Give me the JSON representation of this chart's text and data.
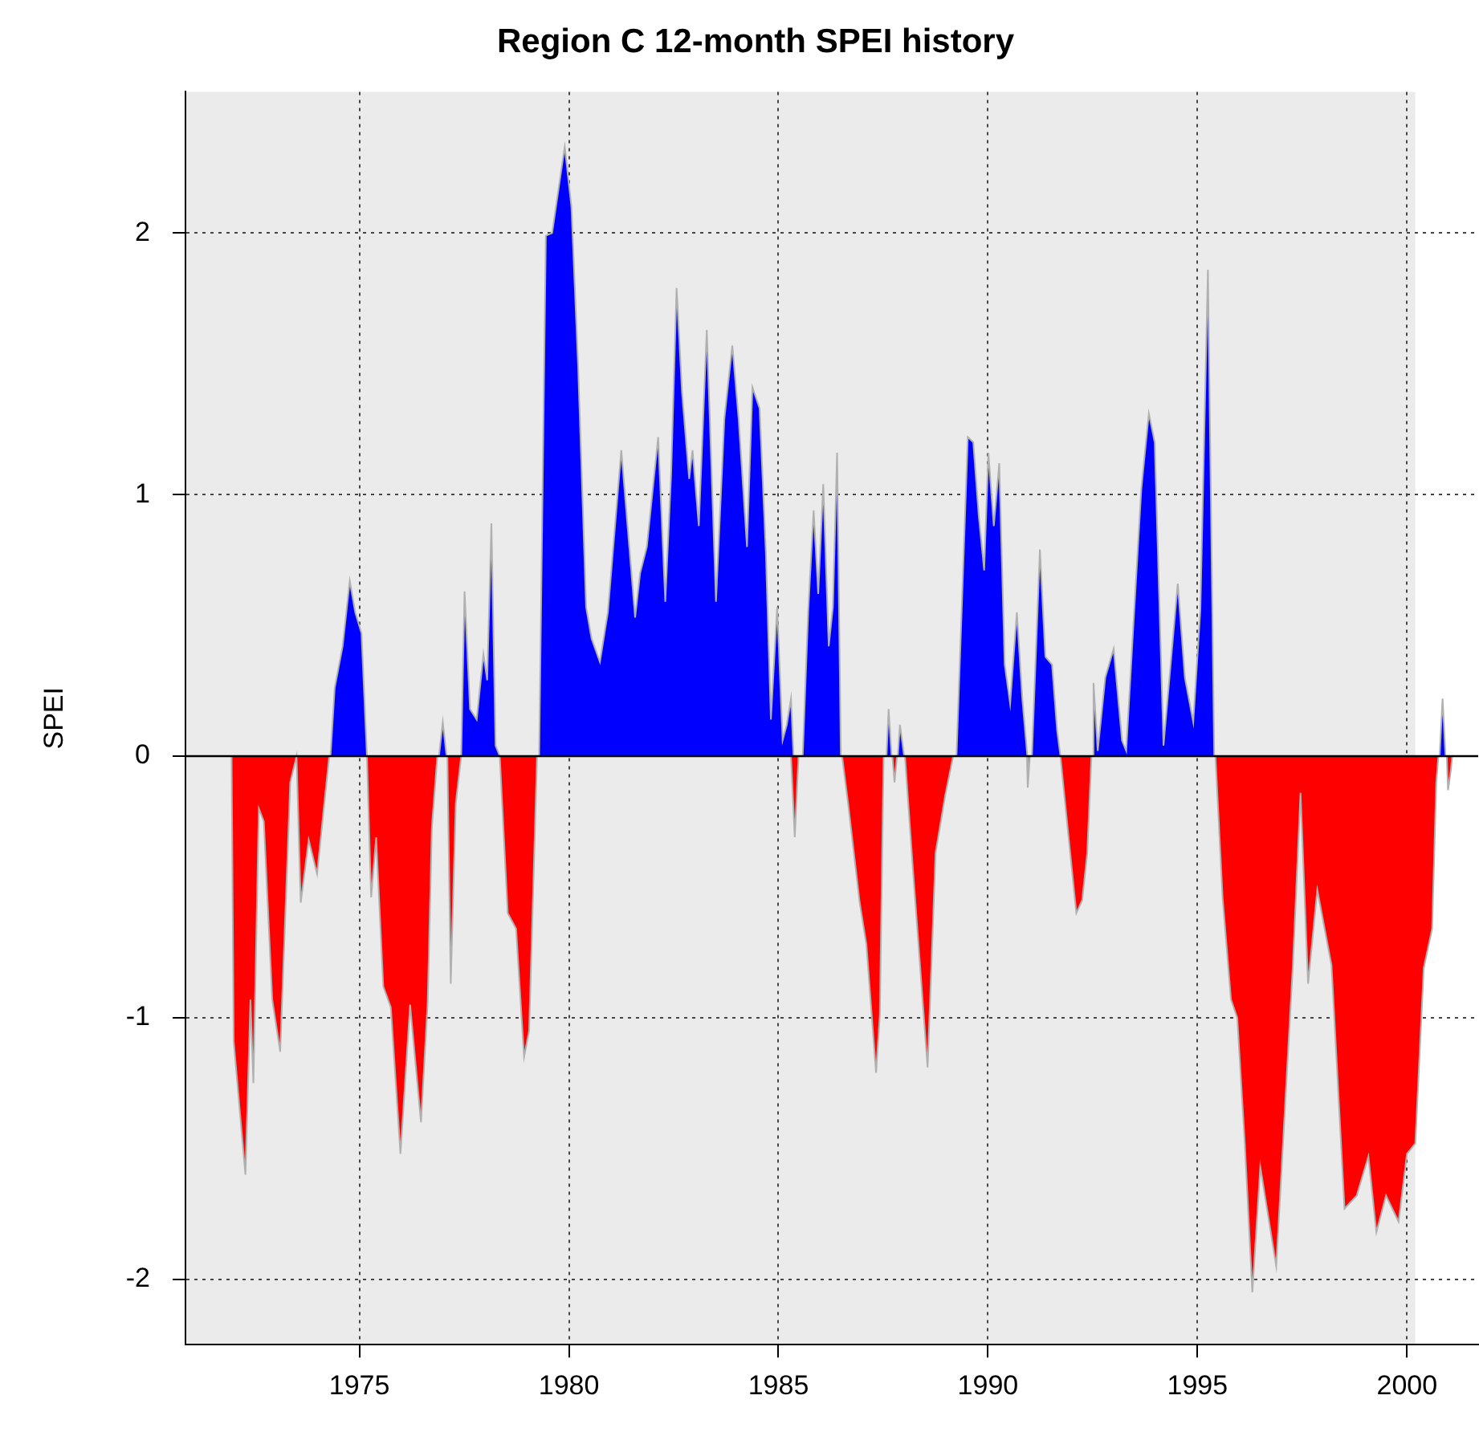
{
  "chart_data": {
    "type": "area",
    "title": "Region C 12-month SPEI history",
    "ylabel": "SPEI",
    "xlim": [
      1970.85,
      2001.7
    ],
    "xticks": [
      1975,
      1980,
      1985,
      1990,
      1995,
      2000
    ],
    "ylim": [
      -2.25,
      2.54
    ],
    "yticks": [
      -2,
      -1,
      0,
      1,
      2
    ],
    "grid": true,
    "ref_lines": [
      {
        "axis": "y",
        "value": 0,
        "color": "#000000",
        "line_style": "solid"
      }
    ],
    "bands": [
      {
        "axis": "x",
        "from": 1970.85,
        "to": 2000.2,
        "color": "#ebebeb"
      }
    ],
    "series": [
      {
        "color": "#0000ff",
        "x": [
          1974.31,
          1974.41,
          1974.6,
          1974.77,
          1974.9,
          1975.05,
          1975.18,
          1976.9,
          1976.99,
          1977.08,
          1977.43,
          1977.51,
          1977.64,
          1977.8,
          1977.96,
          1978.05,
          1978.15,
          1978.25,
          1978.35,
          1979.29,
          1979.45,
          1979.6,
          1979.9,
          1980.06,
          1980.22,
          1980.41,
          1980.54,
          1980.74,
          1980.93,
          1981.25,
          1981.58,
          1981.7,
          1981.86,
          1982.13,
          1982.3,
          1982.44,
          1982.57,
          1982.7,
          1982.87,
          1982.95,
          1983.1,
          1983.29,
          1983.51,
          1983.71,
          1983.9,
          1984.05,
          1984.25,
          1984.38,
          1984.55,
          1984.7,
          1984.82,
          1984.97,
          1985.1,
          1985.2,
          1985.3,
          1985.36,
          1985.58,
          1985.71,
          1985.84,
          1985.95,
          1986.07,
          1986.2,
          1986.3,
          1986.4,
          1986.49,
          1987.58,
          1987.63,
          1987.7,
          1987.85,
          1987.9,
          1988.0,
          1989.25,
          1989.52,
          1989.65,
          1989.78,
          1989.91,
          1990.01,
          1990.14,
          1990.27,
          1990.4,
          1990.53,
          1990.69,
          1990.82,
          1990.94,
          1991.05,
          1991.24,
          1991.37,
          1991.53,
          1991.65,
          1991.73,
          1992.49,
          1992.52,
          1992.62,
          1992.8,
          1993.0,
          1993.2,
          1993.3,
          1993.46,
          1993.66,
          1993.84,
          1993.98,
          1994.19,
          1994.53,
          1994.7,
          1994.9,
          1995.07,
          1995.25,
          1995.4,
          2000.78,
          2000.85,
          2000.92
        ],
        "values": [
          0,
          0.26,
          0.42,
          0.67,
          0.55,
          0.47,
          0,
          0,
          0.13,
          0,
          0,
          0.63,
          0.18,
          0.14,
          0.39,
          0.29,
          0.89,
          0.04,
          0,
          0,
          1.99,
          2.0,
          2.33,
          2.1,
          1.49,
          0.57,
          0.45,
          0.36,
          0.55,
          1.17,
          0.53,
          0.7,
          0.8,
          1.22,
          0.59,
          1.08,
          1.79,
          1.39,
          1.06,
          1.17,
          0.88,
          1.63,
          0.59,
          1.29,
          1.57,
          1.29,
          0.8,
          1.41,
          1.33,
          0.78,
          0.14,
          0.57,
          0.06,
          0.12,
          0.22,
          0,
          0,
          0.55,
          0.94,
          0.62,
          1.04,
          0.42,
          0.57,
          1.16,
          0,
          0,
          0.18,
          0,
          0,
          0.12,
          0,
          0,
          1.22,
          1.2,
          0.92,
          0.71,
          1.16,
          0.88,
          1.12,
          0.35,
          0.2,
          0.55,
          0.22,
          0,
          0,
          0.79,
          0.38,
          0.35,
          0.1,
          0,
          0,
          0.28,
          0.02,
          0.3,
          0.41,
          0.06,
          0.02,
          0.47,
          1.02,
          1.31,
          1.2,
          0.04,
          0.66,
          0.3,
          0.13,
          0.56,
          1.86,
          0,
          0,
          0.22,
          0
        ]
      },
      {
        "color": "#ff0000",
        "x": [
          1971.95,
          1972.0,
          1972.28,
          1972.4,
          1972.47,
          1972.6,
          1972.72,
          1972.92,
          1973.11,
          1973.35,
          1973.5,
          1973.6,
          1973.79,
          1973.99,
          1974.15,
          1974.28,
          1975.18,
          1975.28,
          1975.4,
          1975.57,
          1975.75,
          1975.98,
          1976.21,
          1976.47,
          1976.63,
          1976.73,
          1976.86,
          1977.1,
          1977.18,
          1977.3,
          1977.43,
          1978.35,
          1978.54,
          1978.74,
          1978.93,
          1979.05,
          1979.24,
          1985.3,
          1985.39,
          1985.48,
          1986.52,
          1986.67,
          1986.94,
          1987.1,
          1987.33,
          1987.42,
          1987.51,
          1987.72,
          1987.77,
          1987.83,
          1988.02,
          1988.2,
          1988.56,
          1988.75,
          1988.98,
          1989.17,
          1990.93,
          1990.95,
          1991.0,
          1991.73,
          1991.9,
          1992.11,
          1992.25,
          1992.37,
          1992.47,
          1995.43,
          1995.6,
          1995.8,
          1995.95,
          1996.13,
          1996.31,
          1996.5,
          1996.88,
          1997.28,
          1997.46,
          1997.64,
          1997.86,
          1998.2,
          1998.51,
          1998.8,
          1999.08,
          1999.27,
          1999.5,
          1999.8,
          2000.0,
          2000.2,
          2000.4,
          2000.6,
          2000.7,
          2000.75,
          2000.95,
          2000.98,
          2001.05,
          2001.08
        ],
        "values": [
          0,
          -1.09,
          -1.6,
          -0.93,
          -1.25,
          -0.2,
          -0.25,
          -0.93,
          -1.13,
          -0.1,
          0,
          -0.56,
          -0.32,
          -0.45,
          -0.2,
          0,
          0,
          -0.54,
          -0.31,
          -0.88,
          -0.96,
          -1.52,
          -0.95,
          -1.4,
          -0.94,
          -0.27,
          0,
          0,
          -0.87,
          -0.18,
          0,
          0,
          -0.6,
          -0.66,
          -1.15,
          -1.05,
          0,
          0,
          -0.31,
          0,
          0,
          -0.19,
          -0.56,
          -0.72,
          -1.21,
          -0.99,
          0,
          0,
          -0.1,
          0,
          0,
          -0.41,
          -1.19,
          -0.37,
          -0.15,
          0,
          0,
          -0.12,
          0,
          0,
          -0.27,
          -0.6,
          -0.55,
          -0.37,
          0,
          0,
          -0.54,
          -0.93,
          -1.0,
          -1.48,
          -2.05,
          -1.57,
          -1.95,
          -0.79,
          -0.14,
          -0.87,
          -0.51,
          -0.8,
          -1.73,
          -1.68,
          -1.53,
          -1.82,
          -1.68,
          -1.78,
          -1.52,
          -1.48,
          -0.81,
          -0.66,
          -0.1,
          0,
          0,
          -0.13,
          -0.05,
          0
        ]
      }
    ]
  }
}
